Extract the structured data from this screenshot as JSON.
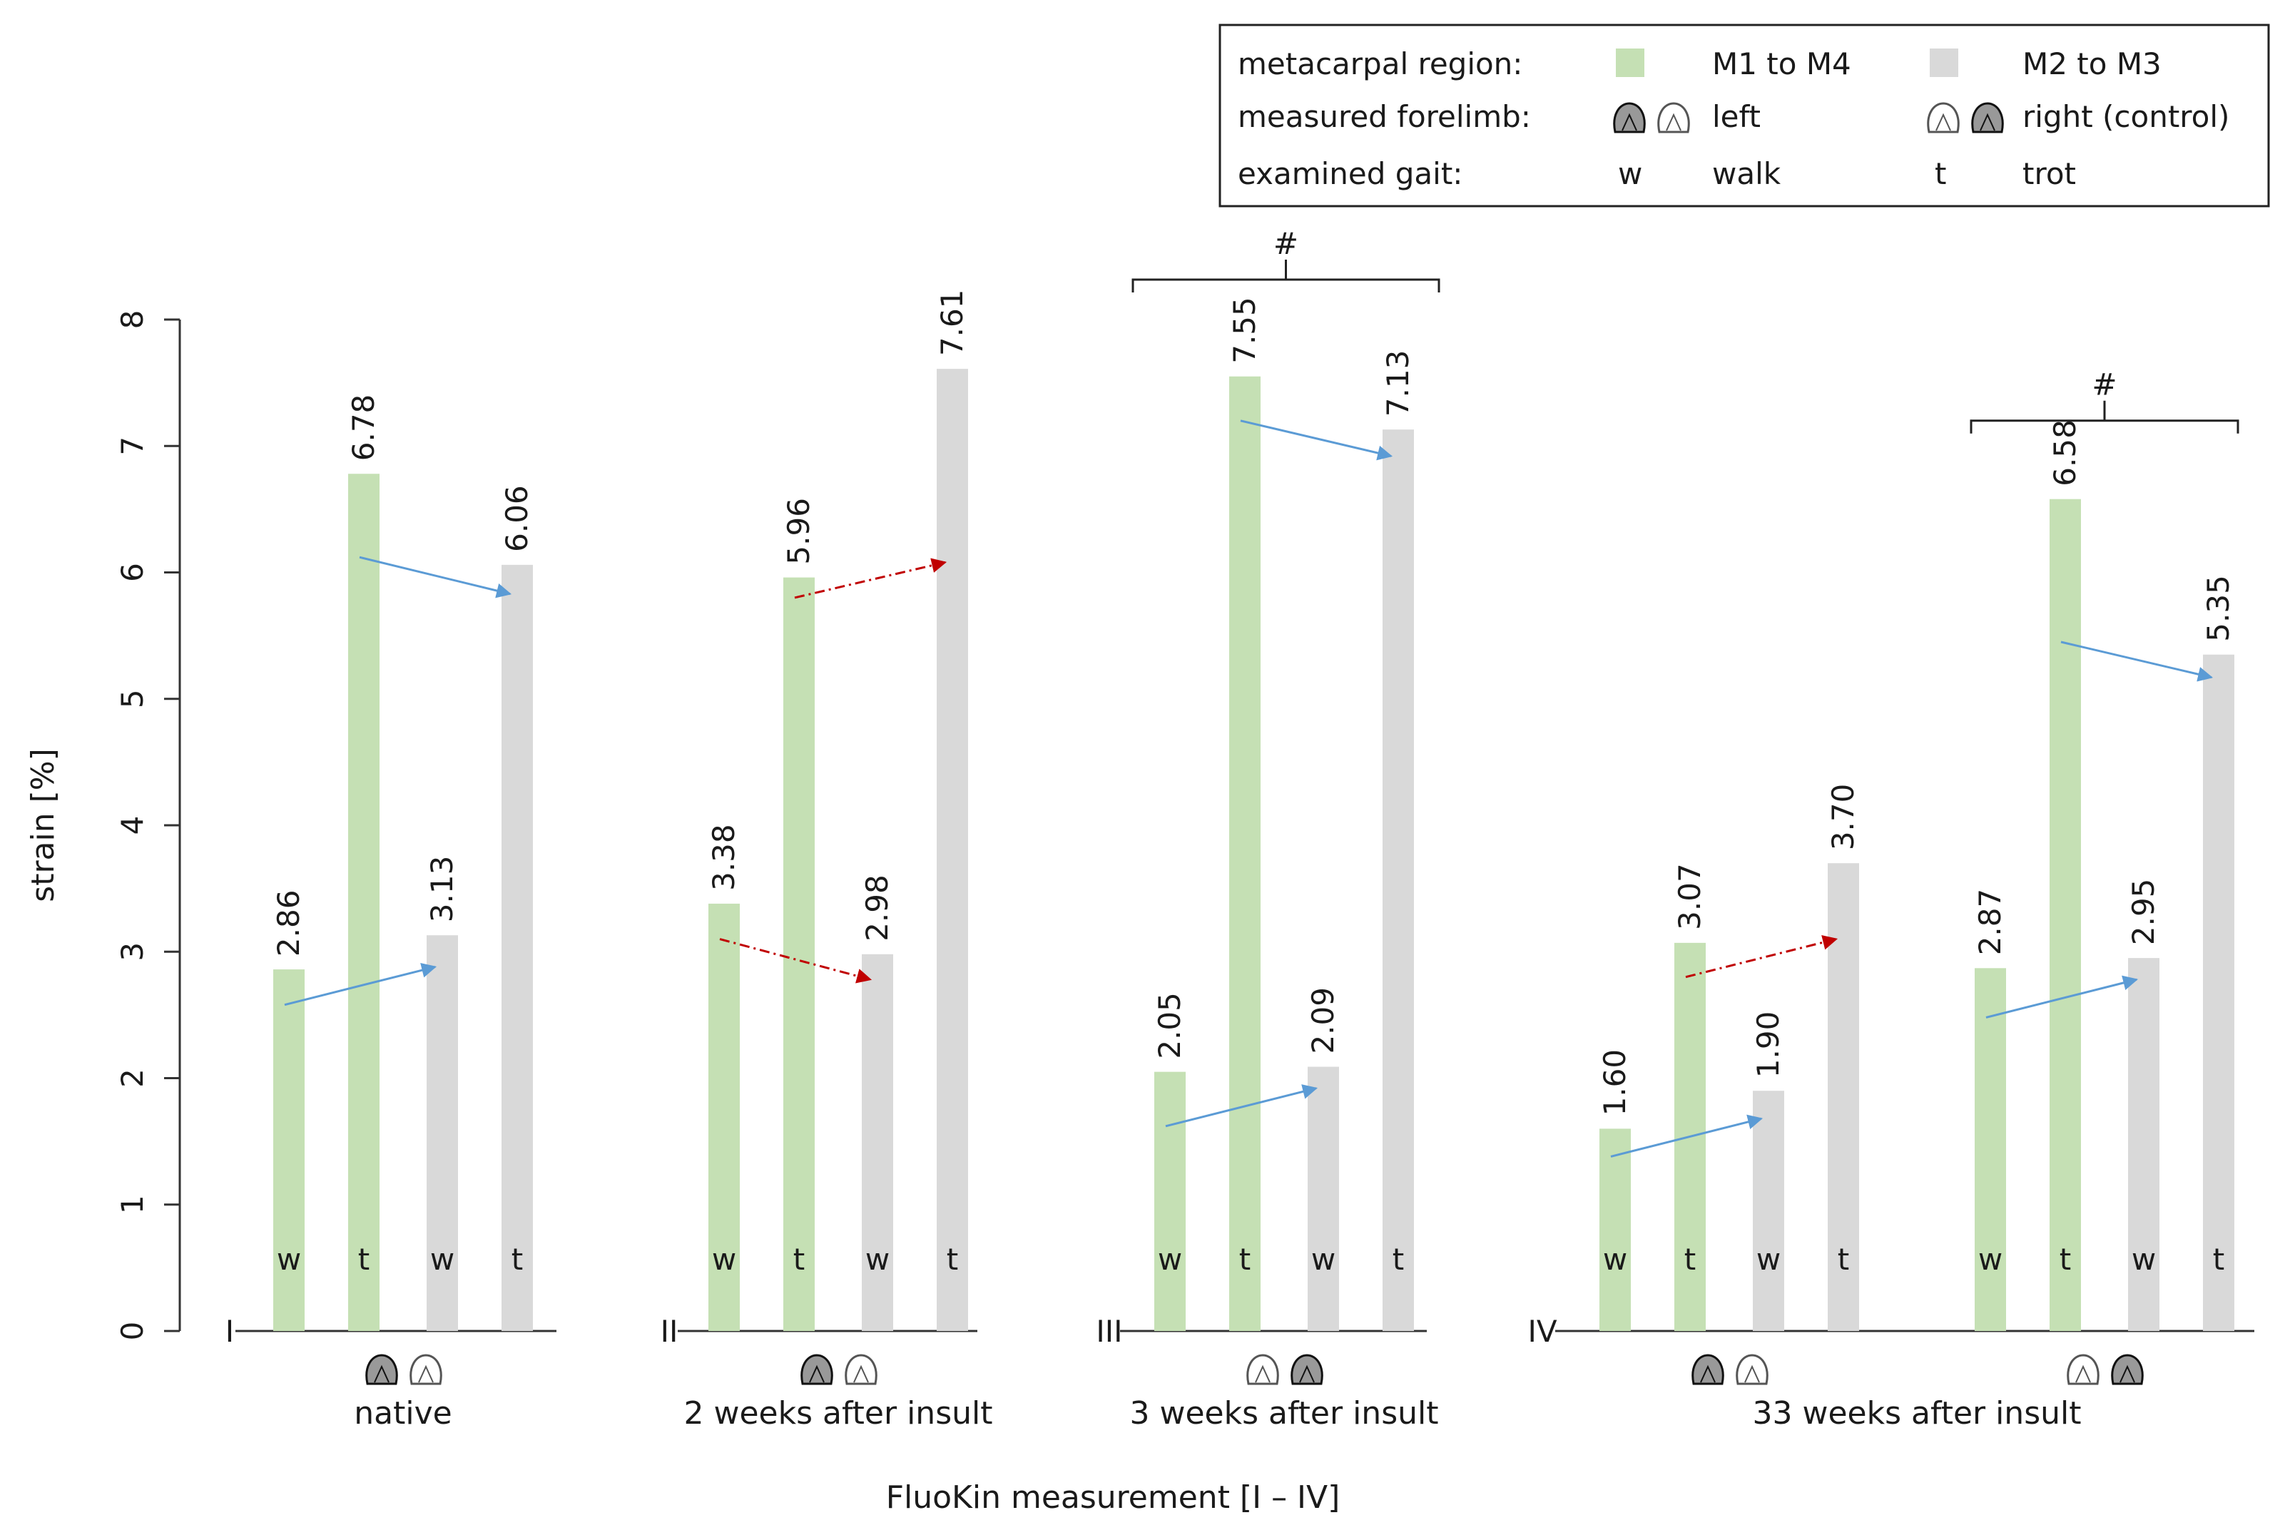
{
  "chart_data": {
    "type": "bar",
    "ylabel": "strain [%]",
    "xlabel": "FluoKin measurement [I – IV]",
    "ylim": [
      0,
      8
    ],
    "yticks": [
      "0",
      "1",
      "2",
      "3",
      "4",
      "5",
      "6",
      "7",
      "8"
    ],
    "colors": {
      "m1_m4": "#c5e0b4",
      "m2_m3": "#d9d9d9",
      "arrow_blue": "#5b9bd5",
      "arrow_red": "#c00000"
    },
    "legend": {
      "rows": [
        {
          "title": "metacarpal region:",
          "a": "M1 to M4",
          "b": "M2 to M3"
        },
        {
          "title": "measured forelimb:",
          "a": "left",
          "b": "right (control)"
        },
        {
          "title": "examined gait:",
          "a_symbol": "w",
          "a": "walk",
          "b_symbol": "t",
          "b": "trot"
        }
      ]
    },
    "measurements": [
      {
        "roman": "I",
        "label": "native",
        "groups": [
          {
            "limb_order": [
              "left",
              "right"
            ],
            "bars": [
              {
                "gait": "w",
                "region": "M1 to M4",
                "value": 2.86,
                "value_label": "2.86"
              },
              {
                "gait": "t",
                "region": "M1 to M4",
                "value": 6.78,
                "value_label": "6.78"
              },
              {
                "gait": "w",
                "region": "M2 to M3",
                "value": 3.13,
                "value_label": "3.13"
              },
              {
                "gait": "t",
                "region": "M2 to M3",
                "value": 6.06,
                "value_label": "6.06"
              }
            ],
            "arrows": [
              {
                "from": 0,
                "to": 2,
                "style": "blue",
                "y1": 2.58,
                "y2": 2.88
              },
              {
                "from": 1,
                "to": 3,
                "style": "blue",
                "y1": 6.12,
                "y2": 5.83
              }
            ]
          }
        ]
      },
      {
        "roman": "II",
        "label": "2 weeks after insult",
        "groups": [
          {
            "limb_order": [
              "left",
              "right"
            ],
            "bars": [
              {
                "gait": "w",
                "region": "M1 to M4",
                "value": 3.38,
                "value_label": "3.38"
              },
              {
                "gait": "t",
                "region": "M1 to M4",
                "value": 5.96,
                "value_label": "5.96"
              },
              {
                "gait": "w",
                "region": "M2 to M3",
                "value": 2.98,
                "value_label": "2.98"
              },
              {
                "gait": "t",
                "region": "M2 to M3",
                "value": 7.61,
                "value_label": "7.61"
              }
            ],
            "arrows": [
              {
                "from": 0,
                "to": 2,
                "style": "red",
                "y1": 3.1,
                "y2": 2.78
              },
              {
                "from": 1,
                "to": 3,
                "style": "red",
                "y1": 5.8,
                "y2": 6.08
              }
            ]
          }
        ]
      },
      {
        "roman": "III",
        "label": "3 weeks after insult",
        "bracket": "#",
        "groups": [
          {
            "limb_order": [
              "right",
              "left"
            ],
            "bars": [
              {
                "gait": "w",
                "region": "M1 to M4",
                "value": 2.05,
                "value_label": "2.05"
              },
              {
                "gait": "t",
                "region": "M1 to M4",
                "value": 7.55,
                "value_label": "7.55"
              },
              {
                "gait": "w",
                "region": "M2 to M3",
                "value": 2.09,
                "value_label": "2.09"
              },
              {
                "gait": "t",
                "region": "M2 to M3",
                "value": 7.13,
                "value_label": "7.13"
              }
            ],
            "arrows": [
              {
                "from": 0,
                "to": 2,
                "style": "blue",
                "y1": 1.62,
                "y2": 1.92
              },
              {
                "from": 1,
                "to": 3,
                "style": "blue",
                "y1": 7.2,
                "y2": 6.92
              }
            ]
          }
        ]
      },
      {
        "roman": "IV",
        "label": "33 weeks after insult",
        "groups": [
          {
            "limb_order": [
              "left",
              "right"
            ],
            "bars": [
              {
                "gait": "w",
                "region": "M1 to M4",
                "value": 1.6,
                "value_label": "1.60"
              },
              {
                "gait": "t",
                "region": "M1 to M4",
                "value": 3.07,
                "value_label": "3.07"
              },
              {
                "gait": "w",
                "region": "M2 to M3",
                "value": 1.9,
                "value_label": "1.90"
              },
              {
                "gait": "t",
                "region": "M2 to M3",
                "value": 3.7,
                "value_label": "3.70"
              }
            ],
            "arrows": [
              {
                "from": 0,
                "to": 2,
                "style": "blue",
                "y1": 1.38,
                "y2": 1.68
              },
              {
                "from": 1,
                "to": 3,
                "style": "red",
                "y1": 2.8,
                "y2": 3.1
              }
            ]
          },
          {
            "limb_order": [
              "right",
              "left"
            ],
            "bracket": "#",
            "bars": [
              {
                "gait": "w",
                "region": "M1 to M4",
                "value": 2.87,
                "value_label": "2.87"
              },
              {
                "gait": "t",
                "region": "M1 to M4",
                "value": 6.58,
                "value_label": "6.58"
              },
              {
                "gait": "w",
                "region": "M2 to M3",
                "value": 2.95,
                "value_label": "2.95"
              },
              {
                "gait": "t",
                "region": "M2 to M3",
                "value": 5.35,
                "value_label": "5.35"
              }
            ],
            "arrows": [
              {
                "from": 0,
                "to": 2,
                "style": "blue",
                "y1": 2.48,
                "y2": 2.78
              },
              {
                "from": 1,
                "to": 3,
                "style": "blue",
                "y1": 5.45,
                "y2": 5.17
              }
            ]
          }
        ]
      }
    ]
  }
}
